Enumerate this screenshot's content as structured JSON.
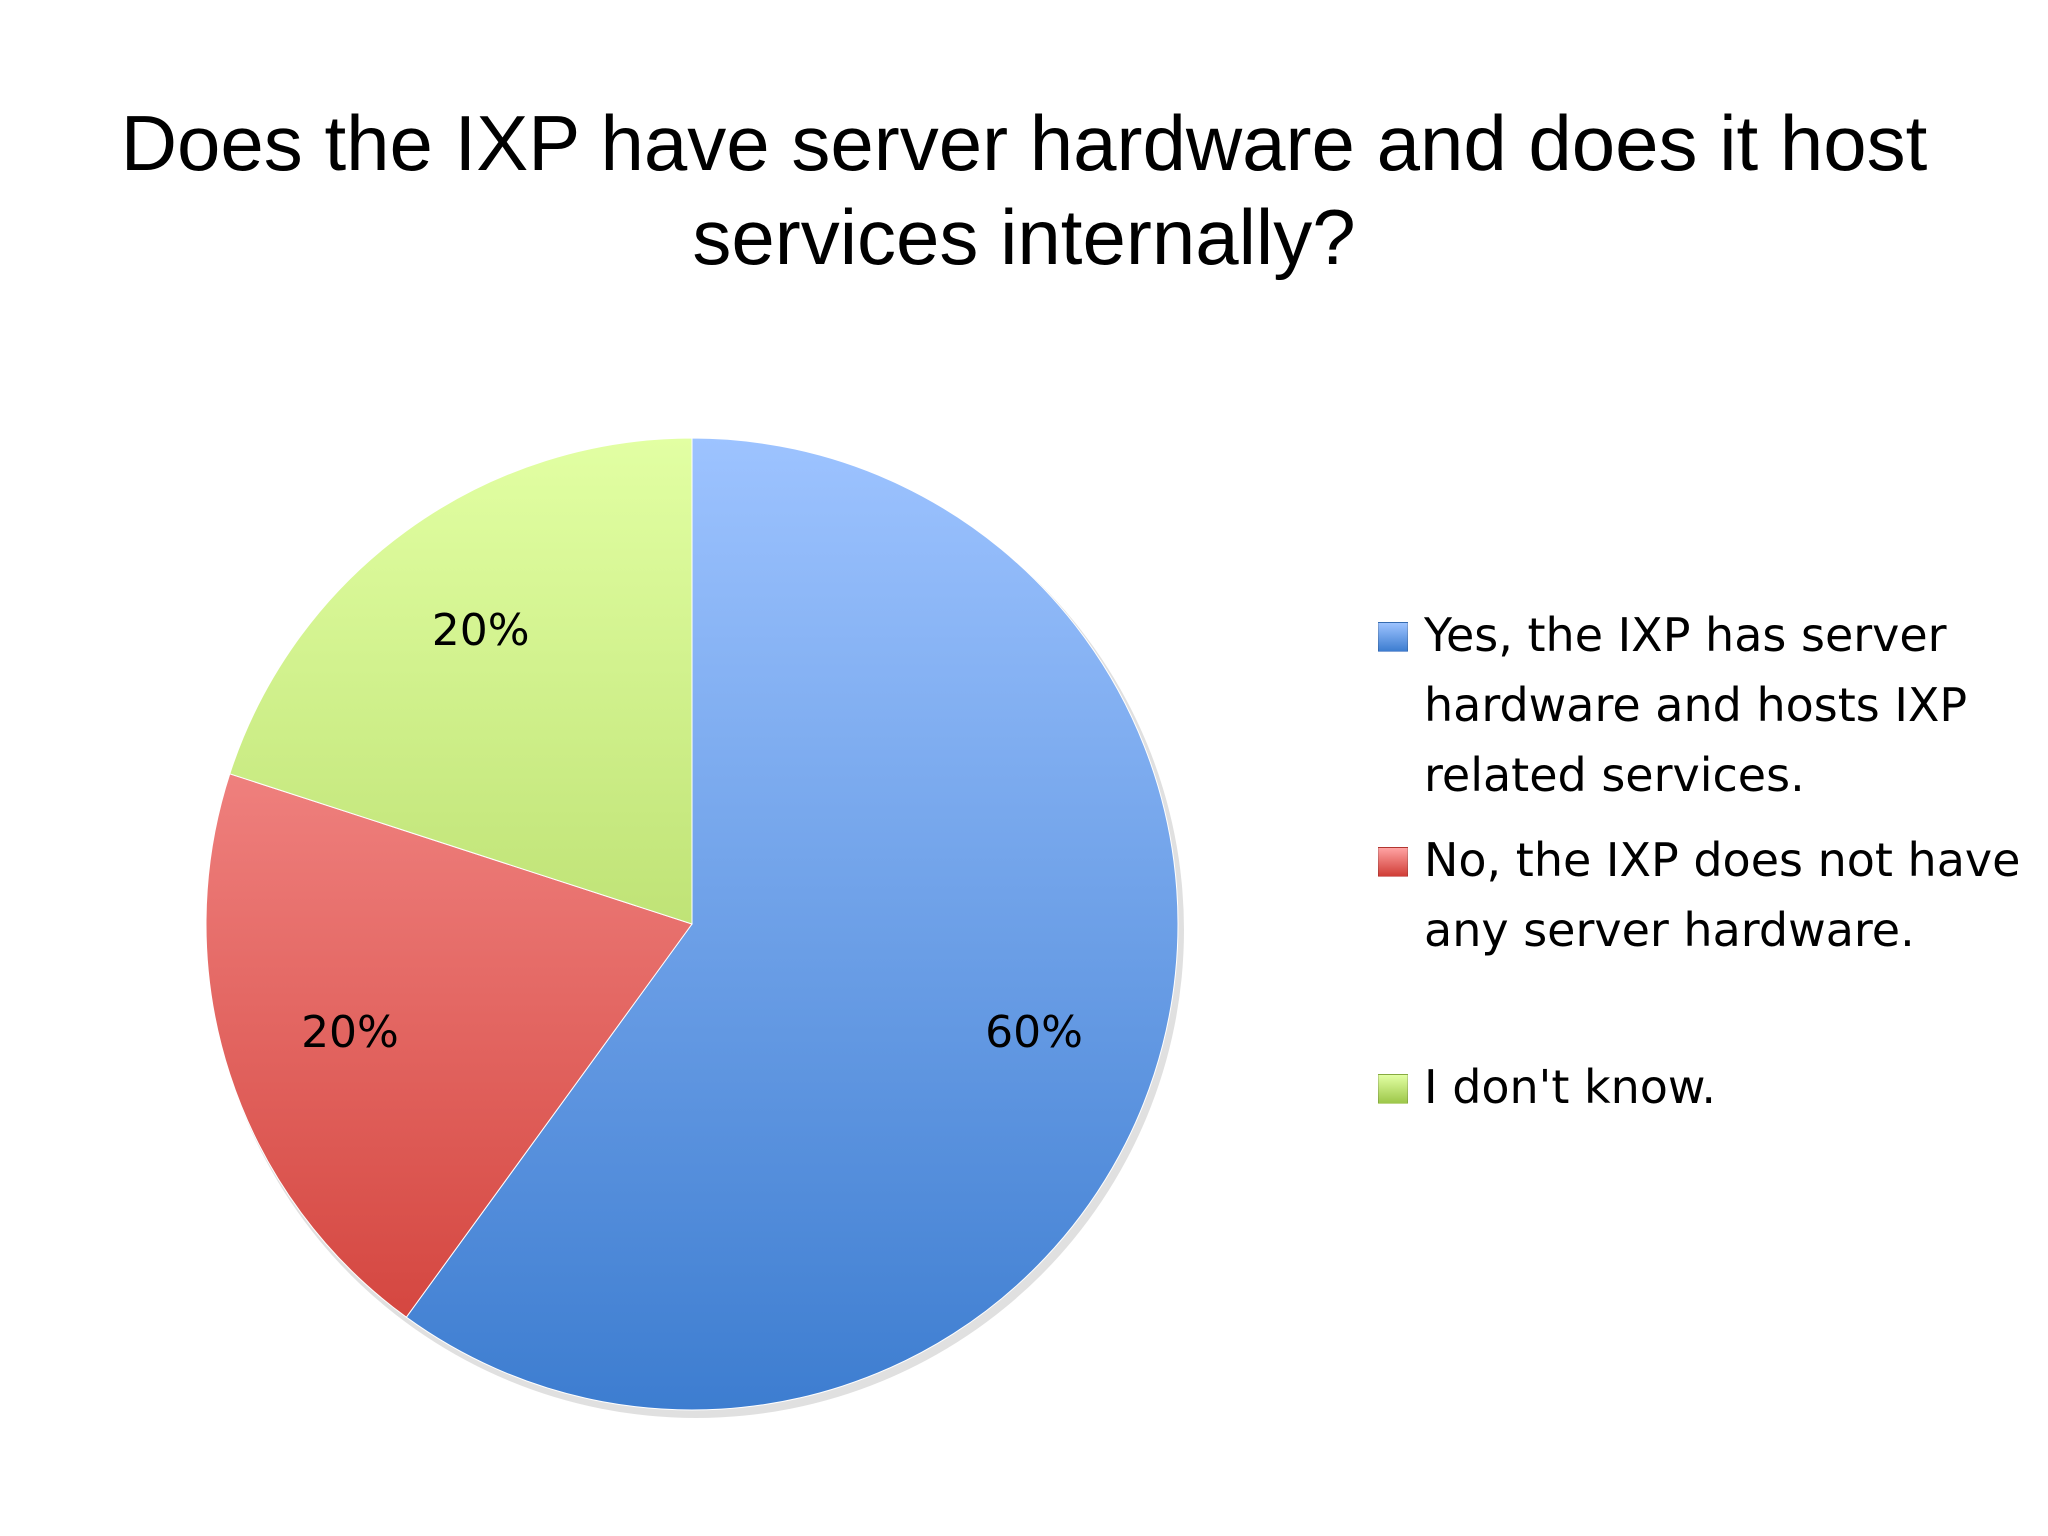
{
  "chart_data": {
    "type": "pie",
    "title": "Does the IXP have server hardware and does it host services internally?",
    "slices": [
      {
        "label": "Yes, the IXP has server hardware and hosts IXP related services.",
        "value": 60,
        "value_label": "60%",
        "color_top": "#9dc3ff",
        "color_bottom": "#3d7dd0"
      },
      {
        "label": "No, the IXP does not have any server hardware.",
        "value": 20,
        "value_label": "20%",
        "color_top": "#ffa3a3",
        "color_bottom": "#d03d36"
      },
      {
        "label": "I don't know.",
        "value": 20,
        "value_label": "20%",
        "color_top": "#e2ffa3",
        "color_bottom": "#9dc74a"
      }
    ],
    "start_angle": "12 o'clock",
    "direction": "clockwise",
    "legend_position": "right"
  }
}
